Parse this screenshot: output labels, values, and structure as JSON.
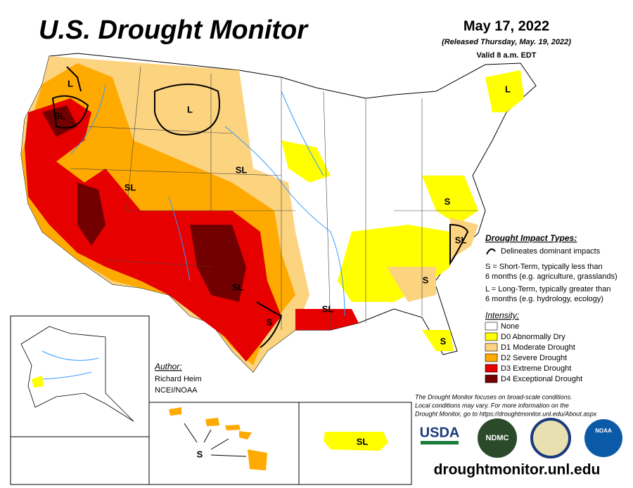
{
  "header": {
    "title": "U.S. Drought Monitor",
    "date": "May 17, 2022",
    "released": "(Released Thursday, May. 19, 2022)",
    "valid": "Valid 8 a.m. EDT"
  },
  "legend": {
    "impact_title": "Drought Impact Types:",
    "impact_line": "Delineates dominant impacts",
    "short_term": [
      "S = Short-Term, typically less than",
      "6 months (e.g. agriculture, grasslands)"
    ],
    "long_term": [
      "L = Long-Term, typically greater than",
      "6 months (e.g. hydrology, ecology)"
    ],
    "intensity_title": "Intensity:",
    "items": [
      {
        "label": "None",
        "color": "#ffffff"
      },
      {
        "label": "D0 Abnormally Dry",
        "color": "#ffff00"
      },
      {
        "label": "D1 Moderate Drought",
        "color": "#fcd37f"
      },
      {
        "label": "D2 Severe Drought",
        "color": "#ffaa00"
      },
      {
        "label": "D3 Extreme Drought",
        "color": "#e60000"
      },
      {
        "label": "D4 Exceptional Drought",
        "color": "#730000"
      }
    ]
  },
  "author": {
    "heading": "Author:",
    "name": "Richard Heim",
    "org": "NCEI/NOAA"
  },
  "note": [
    "The Drought Monitor focuses on broad-scale conditions.",
    "Local conditions may vary. For more information on the",
    "Drought Monitor, go to https://droughtmonitor.unl.edu/About.aspx"
  ],
  "logos": [
    "USDA",
    "NDMC",
    "NOAA"
  ],
  "url": "droughtmonitor.unl.edu",
  "map_labels": [
    "L",
    "SL",
    "L",
    "SL",
    "SL",
    "L",
    "S",
    "SL",
    "SL",
    "S",
    "SL",
    "S",
    "S",
    "S",
    "SL"
  ]
}
